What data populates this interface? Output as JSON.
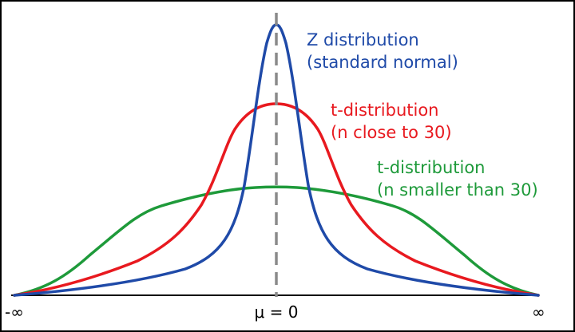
{
  "curves": [
    {
      "key": "z",
      "line1": "Z distribution",
      "line2": "(standard normal)",
      "color": "#1f4aa8"
    },
    {
      "key": "t30",
      "line1": "t-distribution",
      "line2": "(n close to 30)",
      "color": "#e8191f"
    },
    {
      "key": "tsm",
      "line1": "t-distribution",
      "line2": "(n smaller than 30)",
      "color": "#1e9a3a"
    }
  ],
  "axis": {
    "left_label": "-∞",
    "center_label": "μ = 0",
    "right_label": "∞"
  },
  "colors": {
    "mean_line": "#8a8a8a",
    "axis": "#000000"
  }
}
